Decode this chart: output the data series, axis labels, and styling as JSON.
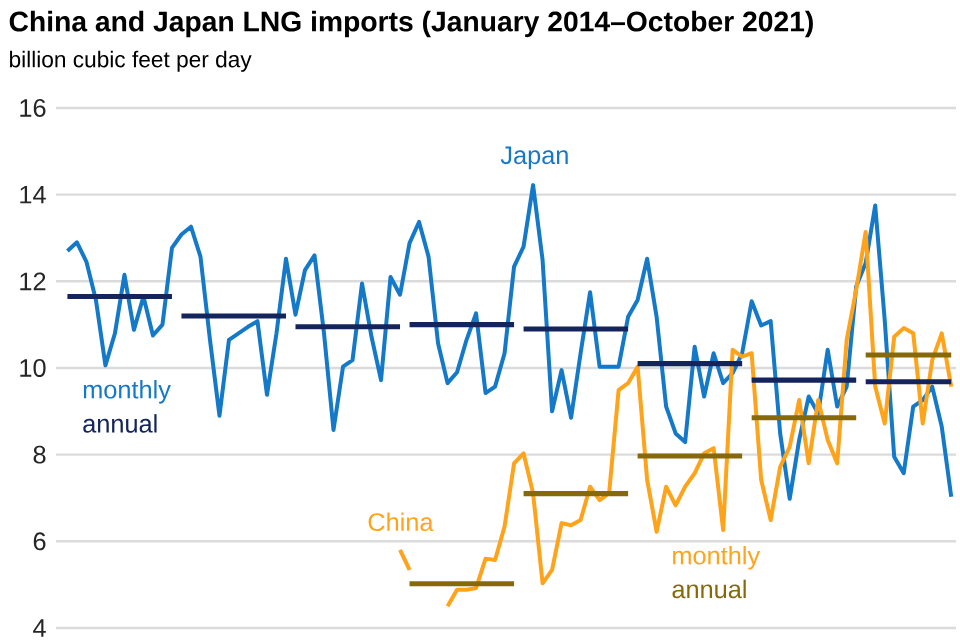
{
  "chart_data": {
    "type": "line",
    "title": "China and Japan LNG imports (January 2014–October 2021)",
    "ylabel": "billion cubic feet per day",
    "categories": [
      null,
      null,
      null,
      null,
      null,
      null,
      null,
      null,
      null,
      null,
      null,
      null,
      null,
      null,
      null,
      null,
      null,
      null,
      null,
      null,
      null,
      null,
      null,
      null,
      null,
      null,
      null,
      null,
      null,
      null,
      null,
      null,
      null,
      null,
      null,
      null,
      null,
      null,
      null,
      null,
      null,
      null,
      null,
      null,
      null,
      null,
      null,
      null,
      null,
      null,
      null,
      null,
      null,
      null,
      null,
      null,
      null,
      null,
      null,
      null,
      null,
      null,
      null,
      null,
      null,
      null,
      null,
      null,
      null,
      null,
      null,
      null,
      null,
      null,
      null,
      null,
      null,
      null,
      null,
      null,
      null,
      null,
      null,
      null,
      null,
      null,
      null,
      null,
      null,
      null,
      null,
      null,
      null,
      null
    ],
    "series": [
      {
        "name": "Japan",
        "color": "#1479c9",
        "values": [
          12.7,
          12.9,
          12.45,
          11.57,
          10.06,
          10.8,
          12.15,
          10.88,
          11.65,
          10.75,
          11.0,
          12.77,
          13.08,
          13.26,
          12.57,
          10.65,
          8.9,
          10.65,
          10.8,
          10.95,
          11.08,
          9.38,
          10.8,
          12.52,
          11.23,
          12.26,
          12.6,
          10.8,
          8.57,
          10.03,
          10.18,
          11.95,
          10.72,
          9.72,
          12.1,
          11.69,
          12.88,
          13.37,
          12.57,
          10.57,
          9.65,
          9.9,
          10.65,
          11.26,
          9.42,
          9.57,
          10.34,
          12.34,
          12.8,
          14.22,
          12.49,
          9.0,
          9.95,
          8.85,
          10.34,
          11.75,
          10.03,
          10.03,
          10.03,
          11.18,
          11.57,
          12.52,
          11.18,
          9.11,
          8.49,
          8.29,
          10.49,
          9.34,
          10.34,
          9.65,
          9.88,
          10.34,
          11.54,
          10.98,
          11.08,
          8.49,
          6.98,
          8.34,
          9.34,
          8.95,
          10.42,
          9.11,
          9.57,
          11.88,
          12.42,
          13.75,
          11.11,
          7.95,
          7.57,
          9.11,
          9.26,
          9.57,
          8.65,
          7.03
        ]
      },
      {
        "name": "China",
        "color": "#ffa31a",
        "values": [
          null,
          null,
          null,
          null,
          null,
          null,
          null,
          null,
          null,
          null,
          null,
          null,
          null,
          null,
          null,
          null,
          null,
          null,
          null,
          null,
          null,
          null,
          null,
          null,
          null,
          null,
          null,
          null,
          null,
          null,
          null,
          null,
          null,
          null,
          null,
          5.8,
          5.34,
          null,
          null,
          null,
          4.5,
          4.88,
          4.88,
          4.92,
          5.6,
          5.57,
          6.34,
          7.8,
          8.03,
          7.11,
          5.03,
          5.34,
          6.42,
          6.37,
          6.49,
          7.26,
          6.95,
          7.11,
          9.49,
          9.65,
          10.03,
          7.42,
          6.22,
          7.26,
          6.83,
          7.26,
          7.57,
          8.03,
          8.15,
          6.26,
          10.42,
          10.26,
          10.34,
          7.42,
          6.49,
          7.72,
          8.18,
          9.26,
          7.8,
          9.26,
          8.34,
          7.8,
          10.65,
          11.8,
          13.14,
          9.57,
          8.72,
          10.72,
          10.92,
          10.8,
          8.72,
          10.18,
          10.8,
          9.57
        ]
      },
      {
        "color": "#14245c",
        "values": [
          11.65,
          11.65,
          11.65,
          11.65,
          11.65,
          11.65,
          11.65,
          11.65,
          11.65,
          11.65,
          11.65,
          11.65,
          null,
          null,
          null,
          null,
          null,
          null,
          null,
          null,
          null,
          null,
          null,
          null,
          null,
          null,
          null,
          null,
          null,
          null,
          null,
          null,
          null,
          null,
          null,
          null,
          null,
          null,
          null,
          null,
          null,
          null,
          null,
          null,
          null,
          null,
          null,
          null,
          null,
          null,
          null,
          null,
          null,
          null,
          null,
          null,
          null,
          null,
          null,
          null,
          null,
          null,
          null,
          null,
          null,
          null,
          null,
          null,
          null,
          null,
          null,
          null,
          null,
          null,
          null,
          null,
          null,
          null,
          null,
          null,
          null,
          null,
          null,
          null,
          null,
          null,
          null,
          null,
          null,
          null,
          null,
          null,
          null,
          null
        ]
      },
      {
        "color": "#14245c",
        "values": [
          null,
          null,
          null,
          null,
          null,
          null,
          null,
          null,
          null,
          null,
          null,
          null,
          11.2,
          11.2,
          11.2,
          11.2,
          11.2,
          11.2,
          11.2,
          11.2,
          11.2,
          11.2,
          11.2,
          11.2,
          null,
          null,
          null,
          null,
          null,
          null,
          null,
          null,
          null,
          null,
          null,
          null,
          null,
          null,
          null,
          null,
          null,
          null,
          null,
          null,
          null,
          null,
          null,
          null,
          null,
          null,
          null,
          null,
          null,
          null,
          null,
          null,
          null,
          null,
          null,
          null,
          null,
          null,
          null,
          null,
          null,
          null,
          null,
          null,
          null,
          null,
          null,
          null,
          null,
          null,
          null,
          null,
          null,
          null,
          null,
          null,
          null,
          null,
          null,
          null,
          null,
          null,
          null,
          null,
          null,
          null,
          null,
          null,
          null,
          null
        ]
      },
      {
        "color": "#14245c",
        "values": [
          null,
          null,
          null,
          null,
          null,
          null,
          null,
          null,
          null,
          null,
          null,
          null,
          null,
          null,
          null,
          null,
          null,
          null,
          null,
          null,
          null,
          null,
          null,
          null,
          10.95,
          10.95,
          10.95,
          10.95,
          10.95,
          10.95,
          10.95,
          10.95,
          10.95,
          10.95,
          10.95,
          10.95,
          null,
          null,
          null,
          null,
          null,
          null,
          null,
          null,
          null,
          null,
          null,
          null,
          null,
          null,
          null,
          null,
          null,
          null,
          null,
          null,
          null,
          null,
          null,
          null,
          null,
          null,
          null,
          null,
          null,
          null,
          null,
          null,
          null,
          null,
          null,
          null,
          null,
          null,
          null,
          null,
          null,
          null,
          null,
          null,
          null,
          null,
          null,
          null,
          null,
          null,
          null,
          null,
          null,
          null,
          null,
          null,
          null,
          null
        ]
      },
      {
        "color": "#14245c",
        "values": [
          null,
          null,
          null,
          null,
          null,
          null,
          null,
          null,
          null,
          null,
          null,
          null,
          null,
          null,
          null,
          null,
          null,
          null,
          null,
          null,
          null,
          null,
          null,
          null,
          null,
          null,
          null,
          null,
          null,
          null,
          null,
          null,
          null,
          null,
          null,
          null,
          11.0,
          11.0,
          11.0,
          11.0,
          11.0,
          11.0,
          11.0,
          11.0,
          11.0,
          11.0,
          11.0,
          11.0,
          null,
          null,
          null,
          null,
          null,
          null,
          null,
          null,
          null,
          null,
          null,
          null,
          null,
          null,
          null,
          null,
          null,
          null,
          null,
          null,
          null,
          null,
          null,
          null,
          null,
          null,
          null,
          null,
          null,
          null,
          null,
          null,
          null,
          null,
          null,
          null,
          null,
          null,
          null,
          null,
          null,
          null,
          null,
          null,
          null,
          null
        ]
      },
      {
        "color": "#14245c",
        "values": [
          null,
          null,
          null,
          null,
          null,
          null,
          null,
          null,
          null,
          null,
          null,
          null,
          null,
          null,
          null,
          null,
          null,
          null,
          null,
          null,
          null,
          null,
          null,
          null,
          null,
          null,
          null,
          null,
          null,
          null,
          null,
          null,
          null,
          null,
          null,
          null,
          null,
          null,
          null,
          null,
          null,
          null,
          null,
          null,
          null,
          null,
          null,
          null,
          10.9,
          10.9,
          10.9,
          10.9,
          10.9,
          10.9,
          10.9,
          10.9,
          10.9,
          10.9,
          10.9,
          10.9,
          null,
          null,
          null,
          null,
          null,
          null,
          null,
          null,
          null,
          null,
          null,
          null,
          null,
          null,
          null,
          null,
          null,
          null,
          null,
          null,
          null,
          null,
          null,
          null,
          null,
          null,
          null,
          null,
          null,
          null,
          null,
          null,
          null,
          null
        ]
      },
      {
        "color": "#14245c",
        "values": [
          null,
          null,
          null,
          null,
          null,
          null,
          null,
          null,
          null,
          null,
          null,
          null,
          null,
          null,
          null,
          null,
          null,
          null,
          null,
          null,
          null,
          null,
          null,
          null,
          null,
          null,
          null,
          null,
          null,
          null,
          null,
          null,
          null,
          null,
          null,
          null,
          null,
          null,
          null,
          null,
          null,
          null,
          null,
          null,
          null,
          null,
          null,
          null,
          null,
          null,
          null,
          null,
          null,
          null,
          null,
          null,
          null,
          null,
          null,
          null,
          10.1,
          10.1,
          10.1,
          10.1,
          10.1,
          10.1,
          10.1,
          10.1,
          10.1,
          10.1,
          10.1,
          10.1,
          null,
          null,
          null,
          null,
          null,
          null,
          null,
          null,
          null,
          null,
          null,
          null,
          null,
          null,
          null,
          null,
          null,
          null,
          null,
          null,
          null,
          null
        ]
      },
      {
        "color": "#14245c",
        "values": [
          null,
          null,
          null,
          null,
          null,
          null,
          null,
          null,
          null,
          null,
          null,
          null,
          null,
          null,
          null,
          null,
          null,
          null,
          null,
          null,
          null,
          null,
          null,
          null,
          null,
          null,
          null,
          null,
          null,
          null,
          null,
          null,
          null,
          null,
          null,
          null,
          null,
          null,
          null,
          null,
          null,
          null,
          null,
          null,
          null,
          null,
          null,
          null,
          null,
          null,
          null,
          null,
          null,
          null,
          null,
          null,
          null,
          null,
          null,
          null,
          null,
          null,
          null,
          null,
          null,
          null,
          null,
          null,
          null,
          null,
          null,
          null,
          9.72,
          9.72,
          9.72,
          9.72,
          9.72,
          9.72,
          9.72,
          9.72,
          9.72,
          9.72,
          9.72,
          9.72,
          null,
          null,
          null,
          null,
          null,
          null,
          null,
          null,
          null,
          null
        ]
      },
      {
        "color": "#14245c",
        "values": [
          null,
          null,
          null,
          null,
          null,
          null,
          null,
          null,
          null,
          null,
          null,
          null,
          null,
          null,
          null,
          null,
          null,
          null,
          null,
          null,
          null,
          null,
          null,
          null,
          null,
          null,
          null,
          null,
          null,
          null,
          null,
          null,
          null,
          null,
          null,
          null,
          null,
          null,
          null,
          null,
          null,
          null,
          null,
          null,
          null,
          null,
          null,
          null,
          null,
          null,
          null,
          null,
          null,
          null,
          null,
          null,
          null,
          null,
          null,
          null,
          null,
          null,
          null,
          null,
          null,
          null,
          null,
          null,
          null,
          null,
          null,
          null,
          null,
          null,
          null,
          null,
          null,
          null,
          null,
          null,
          null,
          null,
          null,
          null,
          9.68,
          9.68,
          9.68,
          9.68,
          9.68,
          9.68,
          9.68,
          9.68,
          9.68,
          9.68
        ]
      },
      {
        "color": "#86690b",
        "values": [
          null,
          null,
          null,
          null,
          null,
          null,
          null,
          null,
          null,
          null,
          null,
          null,
          null,
          null,
          null,
          null,
          null,
          null,
          null,
          null,
          null,
          null,
          null,
          null,
          null,
          null,
          null,
          null,
          null,
          null,
          null,
          null,
          null,
          null,
          null,
          null,
          5.02,
          5.02,
          5.02,
          5.02,
          5.02,
          5.02,
          5.02,
          5.02,
          5.02,
          5.02,
          5.02,
          5.02,
          null,
          null,
          null,
          null,
          null,
          null,
          null,
          null,
          null,
          null,
          null,
          null,
          null,
          null,
          null,
          null,
          null,
          null,
          null,
          null,
          null,
          null,
          null,
          null,
          null,
          null,
          null,
          null,
          null,
          null,
          null,
          null,
          null,
          null,
          null,
          null,
          null,
          null,
          null,
          null,
          null,
          null,
          null,
          null,
          null,
          null
        ]
      },
      {
        "color": "#86690b",
        "values": [
          null,
          null,
          null,
          null,
          null,
          null,
          null,
          null,
          null,
          null,
          null,
          null,
          null,
          null,
          null,
          null,
          null,
          null,
          null,
          null,
          null,
          null,
          null,
          null,
          null,
          null,
          null,
          null,
          null,
          null,
          null,
          null,
          null,
          null,
          null,
          null,
          null,
          null,
          null,
          null,
          null,
          null,
          null,
          null,
          null,
          null,
          null,
          null,
          7.1,
          7.1,
          7.1,
          7.1,
          7.1,
          7.1,
          7.1,
          7.1,
          7.1,
          7.1,
          7.1,
          7.1,
          null,
          null,
          null,
          null,
          null,
          null,
          null,
          null,
          null,
          null,
          null,
          null,
          null,
          null,
          null,
          null,
          null,
          null,
          null,
          null,
          null,
          null,
          null,
          null,
          null,
          null,
          null,
          null,
          null,
          null,
          null,
          null,
          null,
          null
        ]
      },
      {
        "color": "#86690b",
        "values": [
          null,
          null,
          null,
          null,
          null,
          null,
          null,
          null,
          null,
          null,
          null,
          null,
          null,
          null,
          null,
          null,
          null,
          null,
          null,
          null,
          null,
          null,
          null,
          null,
          null,
          null,
          null,
          null,
          null,
          null,
          null,
          null,
          null,
          null,
          null,
          null,
          null,
          null,
          null,
          null,
          null,
          null,
          null,
          null,
          null,
          null,
          null,
          null,
          null,
          null,
          null,
          null,
          null,
          null,
          null,
          null,
          null,
          null,
          null,
          null,
          7.97,
          7.97,
          7.97,
          7.97,
          7.97,
          7.97,
          7.97,
          7.97,
          7.97,
          7.97,
          7.97,
          7.97,
          null,
          null,
          null,
          null,
          null,
          null,
          null,
          null,
          null,
          null,
          null,
          null,
          null,
          null,
          null,
          null,
          null,
          null,
          null,
          null,
          null,
          null
        ]
      },
      {
        "color": "#86690b",
        "values": [
          null,
          null,
          null,
          null,
          null,
          null,
          null,
          null,
          null,
          null,
          null,
          null,
          null,
          null,
          null,
          null,
          null,
          null,
          null,
          null,
          null,
          null,
          null,
          null,
          null,
          null,
          null,
          null,
          null,
          null,
          null,
          null,
          null,
          null,
          null,
          null,
          null,
          null,
          null,
          null,
          null,
          null,
          null,
          null,
          null,
          null,
          null,
          null,
          null,
          null,
          null,
          null,
          null,
          null,
          null,
          null,
          null,
          null,
          null,
          null,
          null,
          null,
          null,
          null,
          null,
          null,
          null,
          null,
          null,
          null,
          null,
          null,
          8.85,
          8.85,
          8.85,
          8.85,
          8.85,
          8.85,
          8.85,
          8.85,
          8.85,
          8.85,
          8.85,
          8.85,
          null,
          null,
          null,
          null,
          null,
          null,
          null,
          null,
          null,
          null
        ]
      },
      {
        "color": "#86690b",
        "values": [
          null,
          null,
          null,
          null,
          null,
          null,
          null,
          null,
          null,
          null,
          null,
          null,
          null,
          null,
          null,
          null,
          null,
          null,
          null,
          null,
          null,
          null,
          null,
          null,
          null,
          null,
          null,
          null,
          null,
          null,
          null,
          null,
          null,
          null,
          null,
          null,
          null,
          null,
          null,
          null,
          null,
          null,
          null,
          null,
          null,
          null,
          null,
          null,
          null,
          null,
          null,
          null,
          null,
          null,
          null,
          null,
          null,
          null,
          null,
          null,
          null,
          null,
          null,
          null,
          null,
          null,
          null,
          null,
          null,
          null,
          null,
          null,
          null,
          null,
          null,
          null,
          null,
          null,
          null,
          null,
          null,
          null,
          null,
          null,
          10.3,
          10.3,
          10.3,
          10.3,
          10.3,
          10.3,
          10.3,
          10.3,
          10.3,
          10.3
        ]
      }
    ],
    "annotations": [
      "monthly",
      "annual",
      "monthly",
      "annual"
    ],
    "ylim": [
      4,
      16
    ],
    "yticks": [
      4,
      6,
      8,
      10,
      12,
      14,
      16
    ],
    "grid": "y",
    "tick_labels": "y",
    "marker": "none",
    "line_style": "solid"
  }
}
